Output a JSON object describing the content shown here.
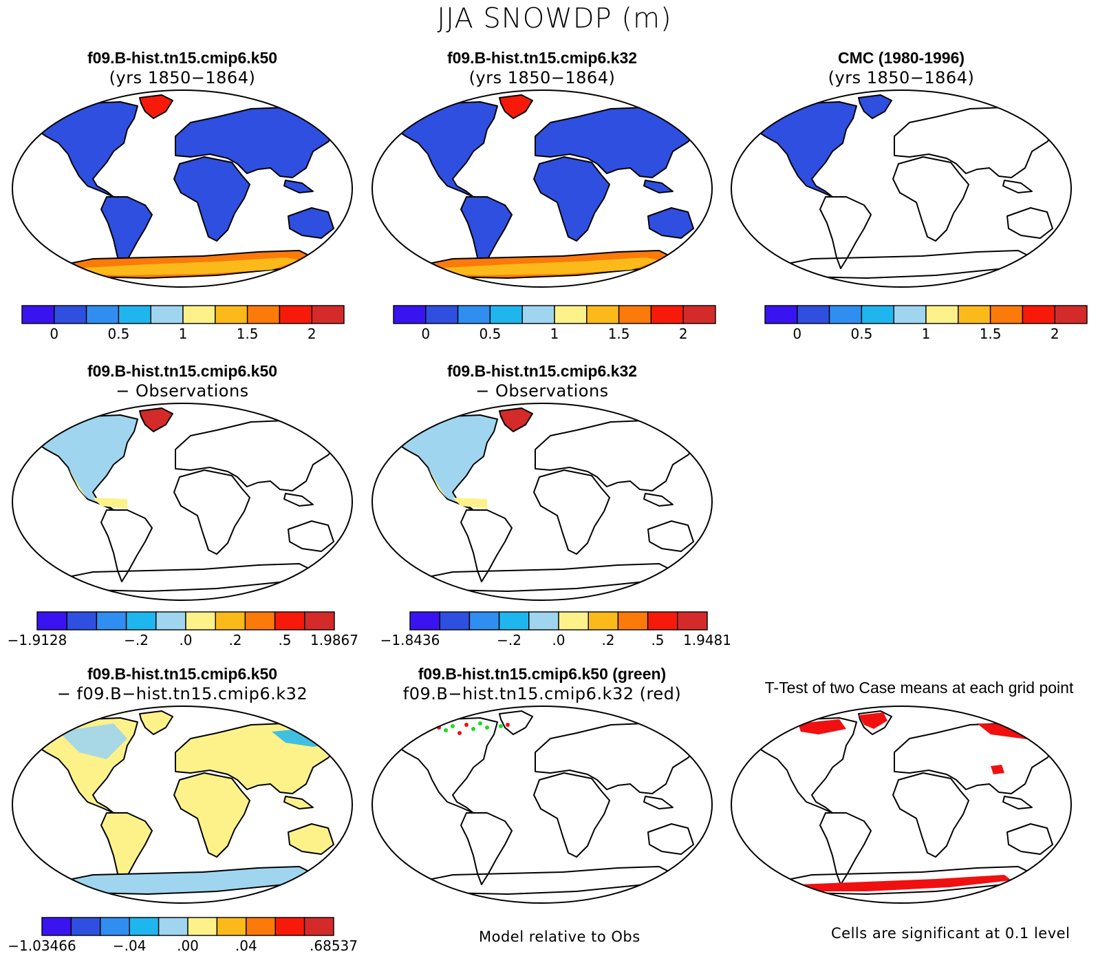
{
  "main_title": "JJA SNOWDP (m)",
  "colors": {
    "ocean": "#ffffff",
    "outline": "#000000",
    "blue_fill": "#2f4fe0",
    "palette": [
      "#3a14f0",
      "#2f4fe0",
      "#2f8ef0",
      "#1fb6f0",
      "#9fd5ef",
      "#fdf28a",
      "#fbba1a",
      "#fb7a0a",
      "#f71a0a",
      "#d42a2a"
    ],
    "green_marker": "#1adc1a",
    "red_marker": "#f01010"
  },
  "panels": [
    {
      "id": "k50",
      "title_line1": "f09.B-hist.tn15.cmip6.k50",
      "title_line2": "(yrs 1850−1864)",
      "fill_land": "blue",
      "colorbar": {
        "labels": [
          "0",
          "0.5",
          "1",
          "1.5",
          "2"
        ]
      }
    },
    {
      "id": "k32",
      "title_line1": "f09.B-hist.tn15.cmip6.k32",
      "title_line2": "(yrs 1850−1864)",
      "fill_land": "blue",
      "colorbar": {
        "labels": [
          "0",
          "0.5",
          "1",
          "1.5",
          "2"
        ]
      }
    },
    {
      "id": "cmc",
      "title_line1": "CMC (1980-1996)",
      "title_line2": "(yrs 1850−1864)",
      "fill_land": "north-america-only",
      "colorbar": {
        "labels": [
          "0",
          "0.5",
          "1",
          "1.5",
          "2"
        ]
      }
    },
    {
      "id": "k50-obs",
      "title_line1": "f09.B-hist.tn15.cmip6.k50",
      "title_line2": "− Observations",
      "fill_land": "diff-obs",
      "colorbar": {
        "labels": [
          "−1.9128",
          "−.2",
          ".0",
          ".2",
          ".5",
          "1.9867"
        ]
      }
    },
    {
      "id": "k32-obs",
      "title_line1": "f09.B-hist.tn15.cmip6.k32",
      "title_line2": "− Observations",
      "fill_land": "diff-obs",
      "colorbar": {
        "labels": [
          "−1.8436",
          "−.2",
          ".0",
          ".2",
          ".5",
          "1.9481"
        ]
      }
    },
    {
      "id": "k50-k32",
      "title_line1": "f09.B-hist.tn15.cmip6.k50",
      "title_line2": "− f09.B−hist.tn15.cmip6.k32",
      "fill_land": "yellow",
      "colorbar": {
        "labels": [
          "−1.03466",
          "−.04",
          ".00",
          ".04",
          ".68537"
        ]
      }
    },
    {
      "id": "relative",
      "title_line1": "f09.B-hist.tn15.cmip6.k50 (green)",
      "title_line2": "f09.B−hist.tn15.cmip6.k32 (red)",
      "fill_land": "none-green-red",
      "footnote": "Model relative to Obs"
    },
    {
      "id": "ttest",
      "title_line1": "T-Test of two Case means at each grid point",
      "fill_land": "none-red",
      "footnote": "Cells are significant at 0.1 level"
    }
  ]
}
